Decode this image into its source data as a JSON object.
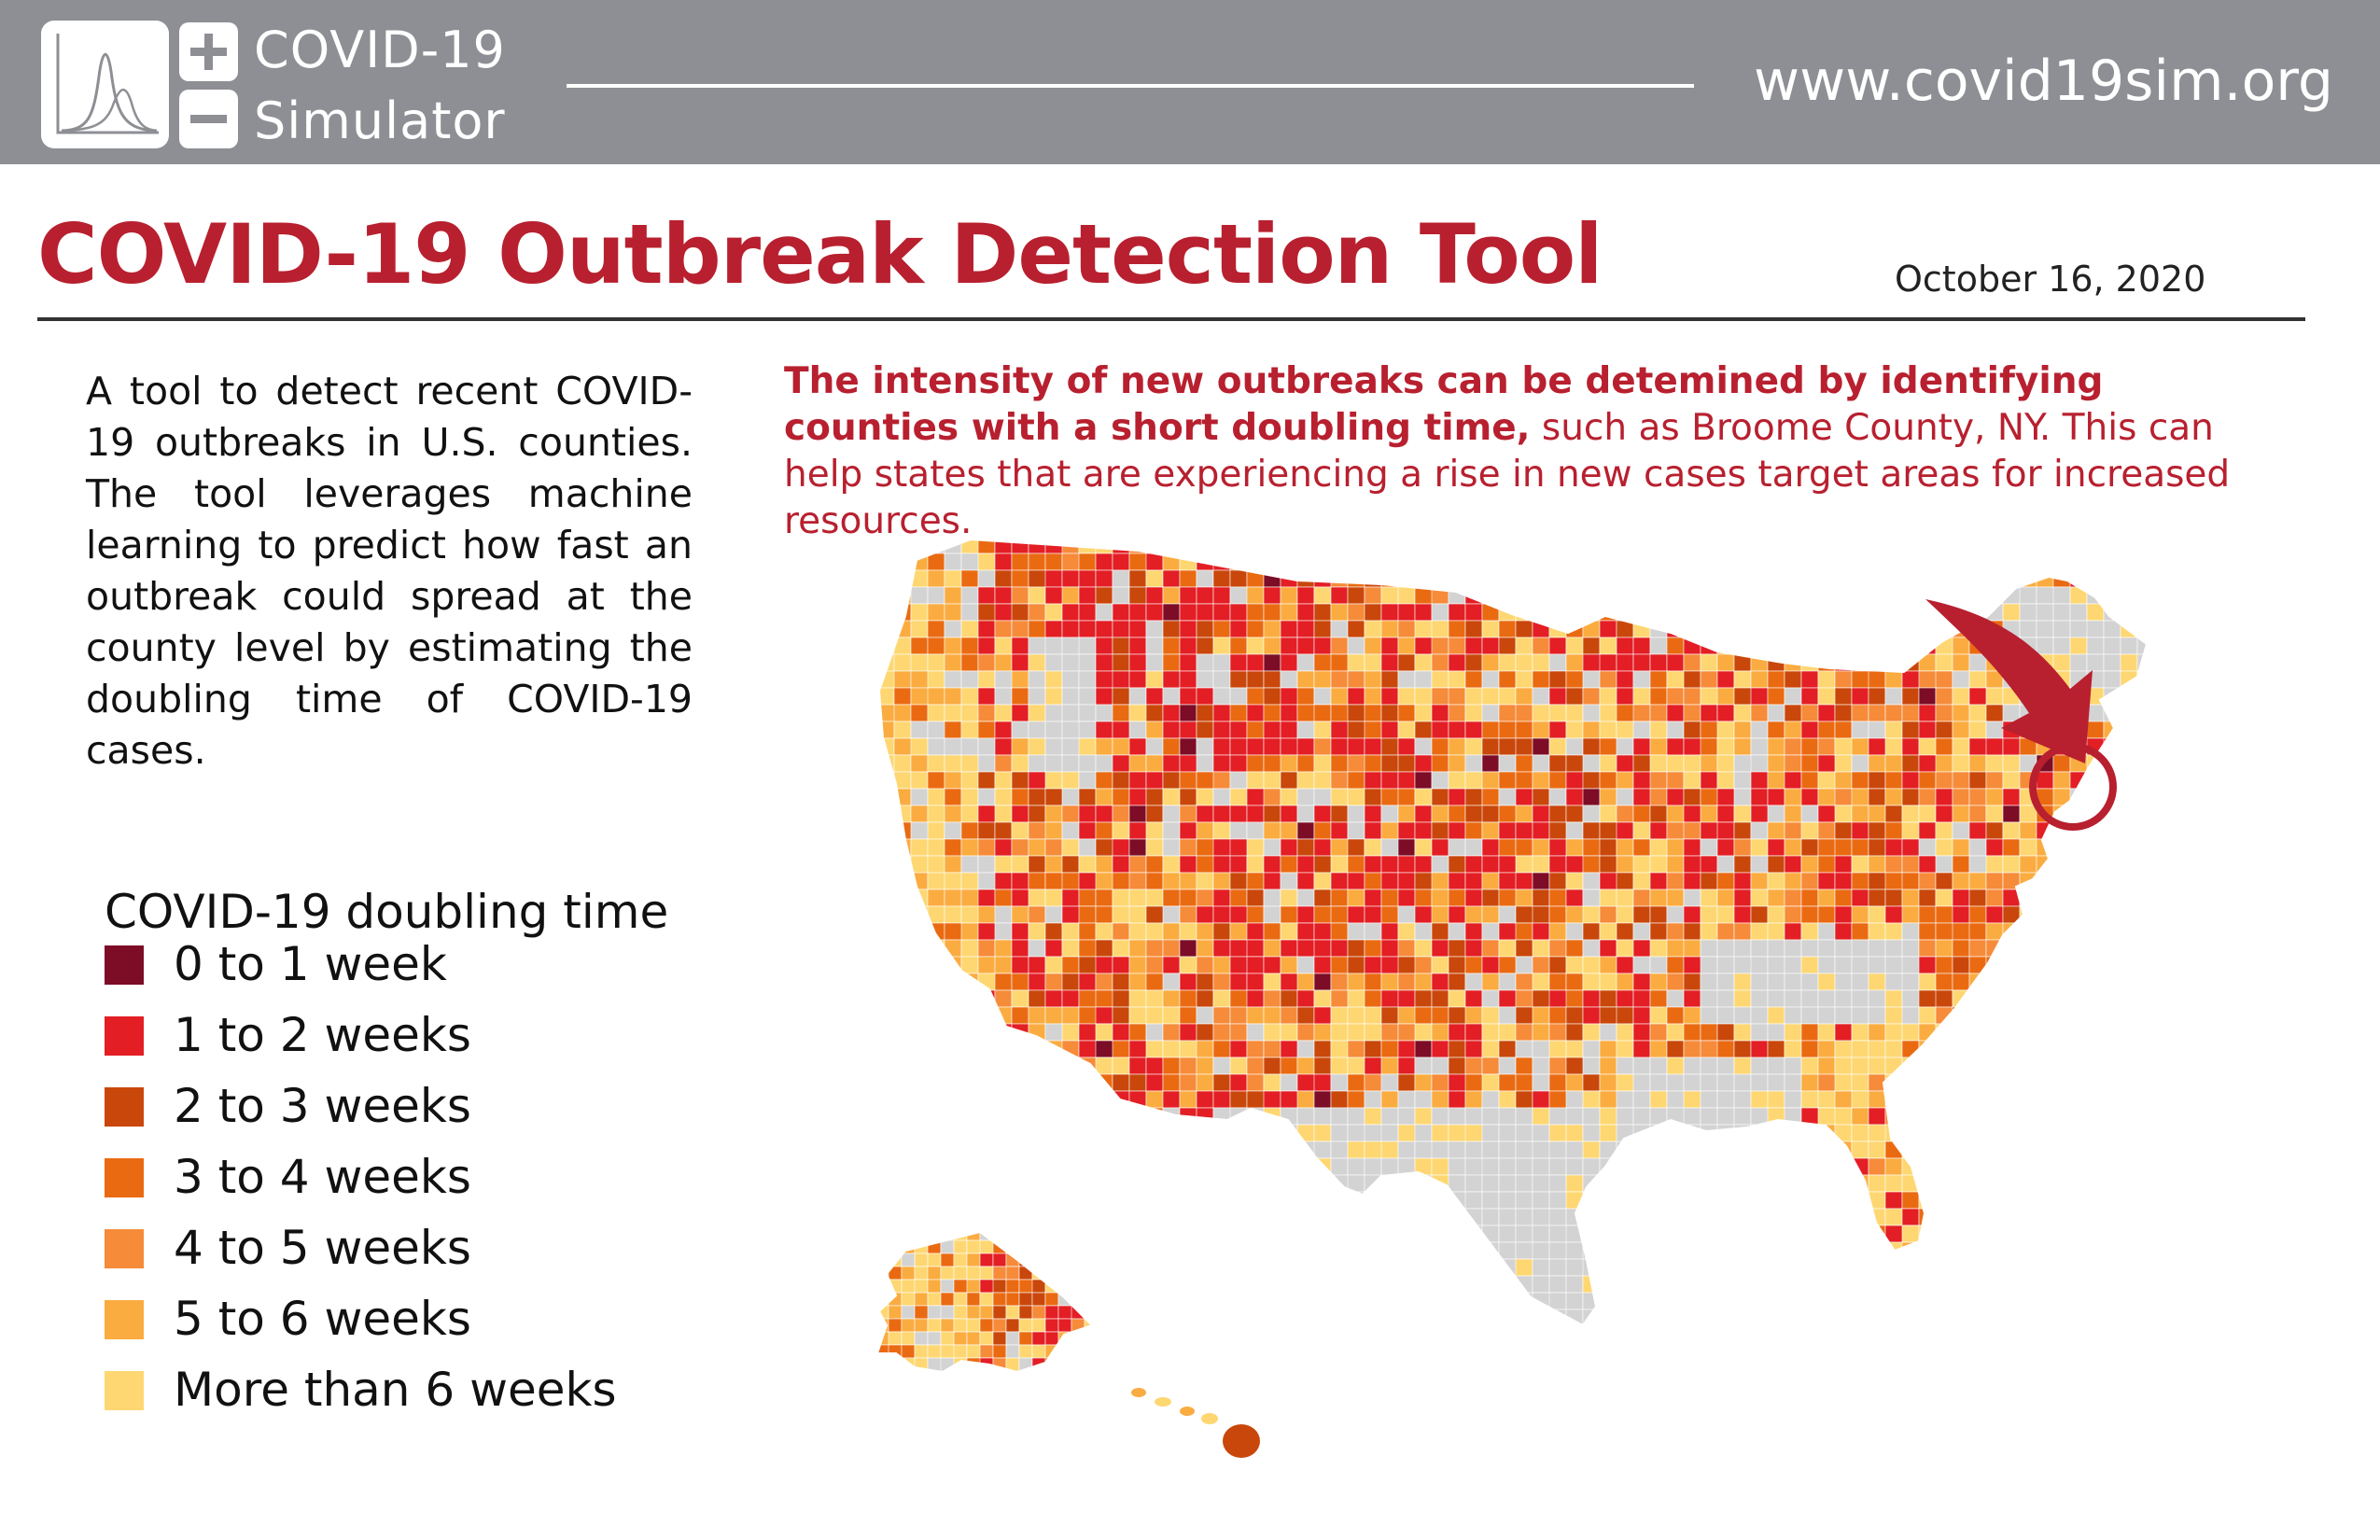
{
  "header": {
    "brand_line1": "COVID-19",
    "brand_line2": "Simulator",
    "site_url": "www.covid19sim.org",
    "logo_icon": "epidemic-curve-icon",
    "plus_icon": "plus-icon",
    "minus_icon": "minus-icon",
    "bar_color": "#8e8f94"
  },
  "title": "COVID-19 Outbreak Detection Tool",
  "date": "October 16, 2020",
  "intro": "A tool to detect recent COVID-19 outbreaks in U.S. counties. The tool leverages machine learning to predict how fast an outbreak could spread at the county level by estimating the doubling time of COVID-19 cases.",
  "description": {
    "bold_part": "The intensity of new outbreaks can be detemined by identifying counties with a short doubling time,",
    "rest": " such as Broome County, NY. This can help states that are experiencing a rise in new cases target areas for increased resources."
  },
  "legend": {
    "title": "COVID-19 doubling time",
    "items": [
      {
        "label": "0 to 1 week",
        "color": "#7d0c26"
      },
      {
        "label": "1 to 2 weeks",
        "color": "#e31e24"
      },
      {
        "label": "2 to 3 weeks",
        "color": "#c9470a"
      },
      {
        "label": "3 to 4 weeks",
        "color": "#ea6a12"
      },
      {
        "label": "4 to 5 weeks",
        "color": "#f68b3a"
      },
      {
        "label": "5 to 6 weeks",
        "color": "#fbac40"
      },
      {
        "label": "More than 6 weeks",
        "color": "#fed772"
      }
    ]
  },
  "map": {
    "no_data_color": "#d3d3d3",
    "accent_color": "#b8202f",
    "highlight_annotation": "broome-county-circle",
    "arrow_icon": "arrow-icon"
  }
}
